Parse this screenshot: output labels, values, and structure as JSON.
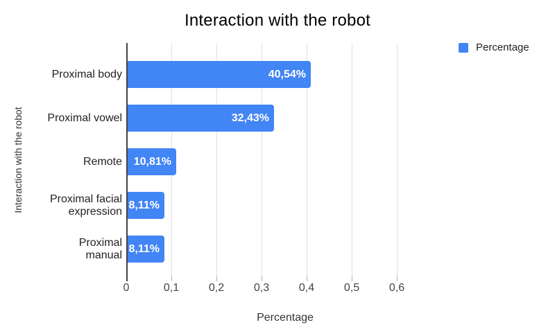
{
  "title": "Interaction with the robot",
  "legend": {
    "items": [
      {
        "label": "Percentage",
        "color": "#4285f4"
      }
    ]
  },
  "x_axis": {
    "title": "Percentage",
    "ticks": [
      "0",
      "0,1",
      "0,2",
      "0,3",
      "0,4",
      "0,5",
      "0,6"
    ],
    "tick_values": [
      0,
      0.1,
      0.2,
      0.3,
      0.4,
      0.5,
      0.6
    ]
  },
  "y_axis": {
    "title": "Interaction with the robot"
  },
  "colors": {
    "bar": "#4285f4",
    "gridline": "#e0e0e0",
    "axis_line": "#424242",
    "value_label": "#ffffff"
  },
  "chart_data": {
    "type": "bar",
    "orientation": "horizontal",
    "title": "Interaction with the robot",
    "categories": [
      "Proximal body",
      "Proximal vowel",
      "Remote",
      "Proximal facial expression",
      "Proximal manual"
    ],
    "values": [
      0.4054,
      0.3243,
      0.1081,
      0.0811,
      0.0811
    ],
    "value_labels": [
      "40,54%",
      "32,43%",
      "10,81%",
      "8,11%",
      "8,11%"
    ],
    "series": [
      {
        "name": "Percentage",
        "values": [
          0.4054,
          0.3243,
          0.1081,
          0.0811,
          0.0811
        ]
      }
    ],
    "xlabel": "Percentage",
    "ylabel": "Interaction with the robot",
    "xlim": [
      0,
      0.65
    ],
    "grid": true,
    "legend_position": "top-right"
  }
}
